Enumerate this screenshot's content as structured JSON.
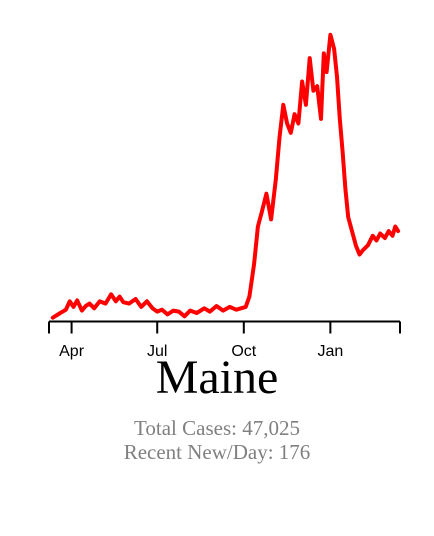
{
  "title": "Maine",
  "stats": {
    "total": "Total Cases: 47,025",
    "recent": "Recent New/Day: 176"
  },
  "colors": {
    "line": "#ff0000",
    "axis": "#000000",
    "stat_text": "#808080"
  },
  "chart_data": {
    "type": "line",
    "title": "",
    "xlabel": "",
    "ylabel": "",
    "grid": false,
    "legend": "none",
    "x_range": [
      "2020-03-08",
      "2021-03-16"
    ],
    "y_range": [
      0,
      620
    ],
    "x_ticks": [
      {
        "date": "2020-04-01",
        "label": "Apr"
      },
      {
        "date": "2020-07-01",
        "label": "Jul"
      },
      {
        "date": "2020-10-01",
        "label": "Oct"
      },
      {
        "date": "2021-01-01",
        "label": "Jan"
      }
    ],
    "series": [
      {
        "name": "",
        "x": [
          "2020-03-12",
          "2020-03-20",
          "2020-03-26",
          "2020-03-30",
          "2020-04-03",
          "2020-04-07",
          "2020-04-12",
          "2020-04-16",
          "2020-04-20",
          "2020-04-25",
          "2020-05-01",
          "2020-05-07",
          "2020-05-13",
          "2020-05-18",
          "2020-05-22",
          "2020-05-26",
          "2020-06-01",
          "2020-06-08",
          "2020-06-14",
          "2020-06-20",
          "2020-06-26",
          "2020-07-01",
          "2020-07-06",
          "2020-07-12",
          "2020-07-18",
          "2020-07-24",
          "2020-07-30",
          "2020-08-05",
          "2020-08-12",
          "2020-08-20",
          "2020-08-26",
          "2020-09-02",
          "2020-09-09",
          "2020-09-16",
          "2020-09-23",
          "2020-09-28",
          "2020-10-03",
          "2020-10-07",
          "2020-10-12",
          "2020-10-16",
          "2020-10-20",
          "2020-10-25",
          "2020-10-30",
          "2020-11-04",
          "2020-11-08",
          "2020-11-12",
          "2020-11-16",
          "2020-11-20",
          "2020-11-24",
          "2020-11-28",
          "2020-12-02",
          "2020-12-06",
          "2020-12-10",
          "2020-12-14",
          "2020-12-18",
          "2020-12-22",
          "2020-12-25",
          "2020-12-28",
          "2021-01-01",
          "2021-01-05",
          "2021-01-08",
          "2021-01-11",
          "2021-01-14",
          "2021-01-17",
          "2021-01-20",
          "2021-01-24",
          "2021-01-28",
          "2021-02-01",
          "2021-02-05",
          "2021-02-10",
          "2021-02-15",
          "2021-02-19",
          "2021-02-23",
          "2021-02-28",
          "2021-03-04",
          "2021-03-08",
          "2021-03-11",
          "2021-03-14"
        ],
        "values": [
          5,
          15,
          22,
          40,
          28,
          42,
          20,
          30,
          35,
          25,
          40,
          35,
          55,
          40,
          50,
          38,
          35,
          45,
          28,
          40,
          25,
          18,
          22,
          12,
          20,
          18,
          8,
          20,
          15,
          25,
          18,
          30,
          20,
          28,
          22,
          25,
          28,
          50,
          120,
          200,
          230,
          270,
          215,
          300,
          390,
          460,
          420,
          400,
          440,
          420,
          510,
          460,
          560,
          490,
          500,
          430,
          570,
          530,
          610,
          580,
          520,
          430,
          360,
          280,
          220,
          190,
          160,
          140,
          150,
          160,
          180,
          170,
          185,
          175,
          190,
          180,
          200,
          190
        ]
      }
    ]
  }
}
